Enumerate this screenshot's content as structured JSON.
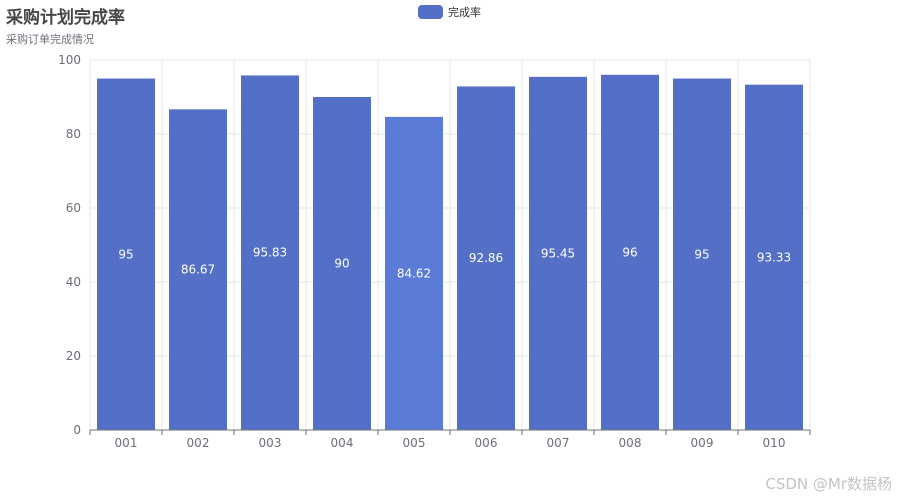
{
  "title": "采购计划完成率",
  "subtitle": "采购订单完成情况",
  "watermark": "CSDN @Mr数据杨",
  "colors": {
    "bar": "#5470c6",
    "bar_highlight": "#5b7bd8",
    "axis": "#6e7079",
    "grid": "#e0e6f1"
  },
  "chart_data": {
    "type": "bar",
    "title": "采购计划完成率",
    "subtitle": "采购订单完成情况",
    "categories": [
      "001",
      "002",
      "003",
      "004",
      "005",
      "006",
      "007",
      "008",
      "009",
      "010"
    ],
    "series": [
      {
        "name": "完成率",
        "values": [
          95,
          86.67,
          95.83,
          90,
          84.62,
          92.86,
          95.45,
          96,
          95,
          93.33
        ],
        "labels": [
          "95",
          "86.67",
          "95.83",
          "90",
          "84.62",
          "92.86",
          "95.45",
          "96",
          "95",
          "93.33"
        ]
      }
    ],
    "highlighted_index": 4,
    "ylim": [
      0,
      100
    ],
    "yticks": [
      "0",
      "20",
      "40",
      "60",
      "80",
      "100"
    ],
    "legend_position": "top-center",
    "grid": true
  }
}
